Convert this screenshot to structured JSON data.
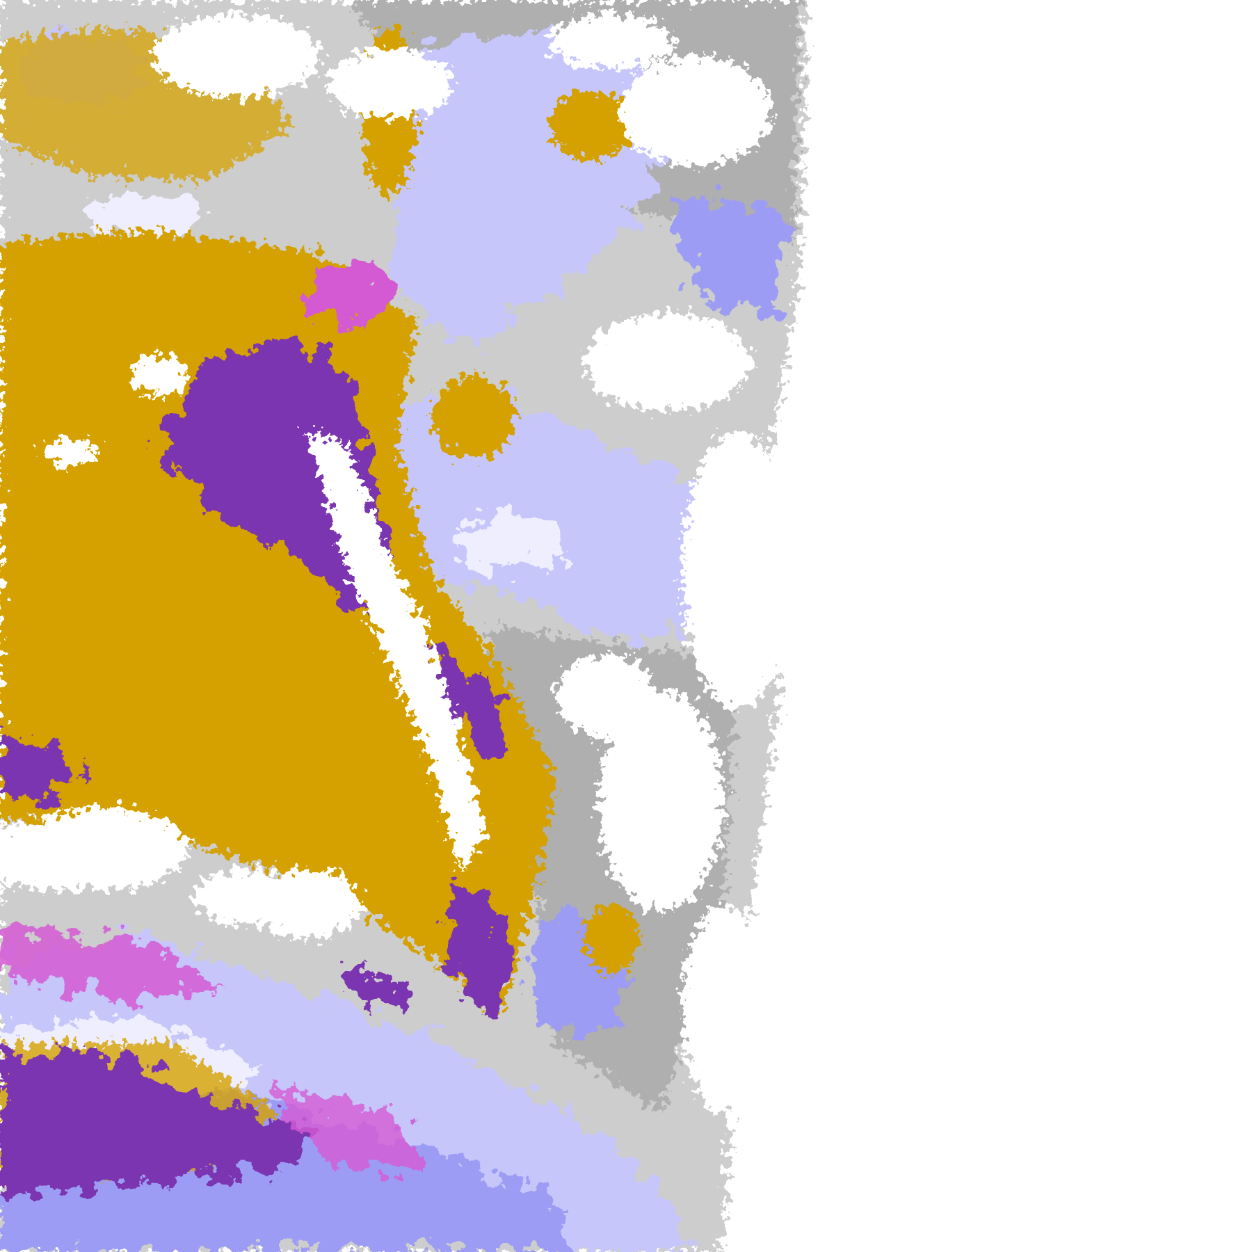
{
  "map": {
    "kind": "satellite-cloud-classification-tile",
    "palette": {
      "background": "#ffffff",
      "gold": "#d4a100",
      "purple": "#7b35b0",
      "magenta": "#d45ad4",
      "lavender": "#c6c6fa",
      "periwinkle": "#9c9cf4",
      "pale": "#eeeefe",
      "gray": "#a8a8a8",
      "light_gray": "#c8c8c8"
    }
  }
}
